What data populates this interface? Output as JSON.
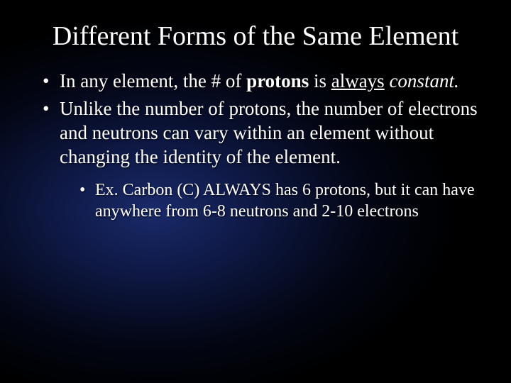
{
  "slide": {
    "background": {
      "gradient_center_color": "#1a2a6a",
      "gradient_mid_color": "#0f1a48",
      "gradient_outer_color": "#030614",
      "gradient_edge_color": "#000000"
    },
    "text_color": "#ffffff",
    "title": {
      "text": "Different Forms of the Same Element",
      "font_size_pt": 38,
      "font_family": "Times New Roman",
      "align": "center"
    },
    "bullets": [
      {
        "parts": {
          "pre": "In any element, the # of ",
          "bold": "protons",
          "mid": " is ",
          "underline": "always",
          "post_italic": "constant."
        },
        "font_size_pt": 27
      },
      {
        "text": "Unlike the number of protons, the number of electrons and neutrons can vary within an element without changing the identity of the element.",
        "font_size_pt": 27,
        "sub": [
          {
            "text": "Ex.  Carbon (C) ALWAYS has 6 protons, but it can have anywhere from 6-8 neutrons and 2-10 electrons",
            "font_size_pt": 24
          }
        ]
      }
    ]
  }
}
